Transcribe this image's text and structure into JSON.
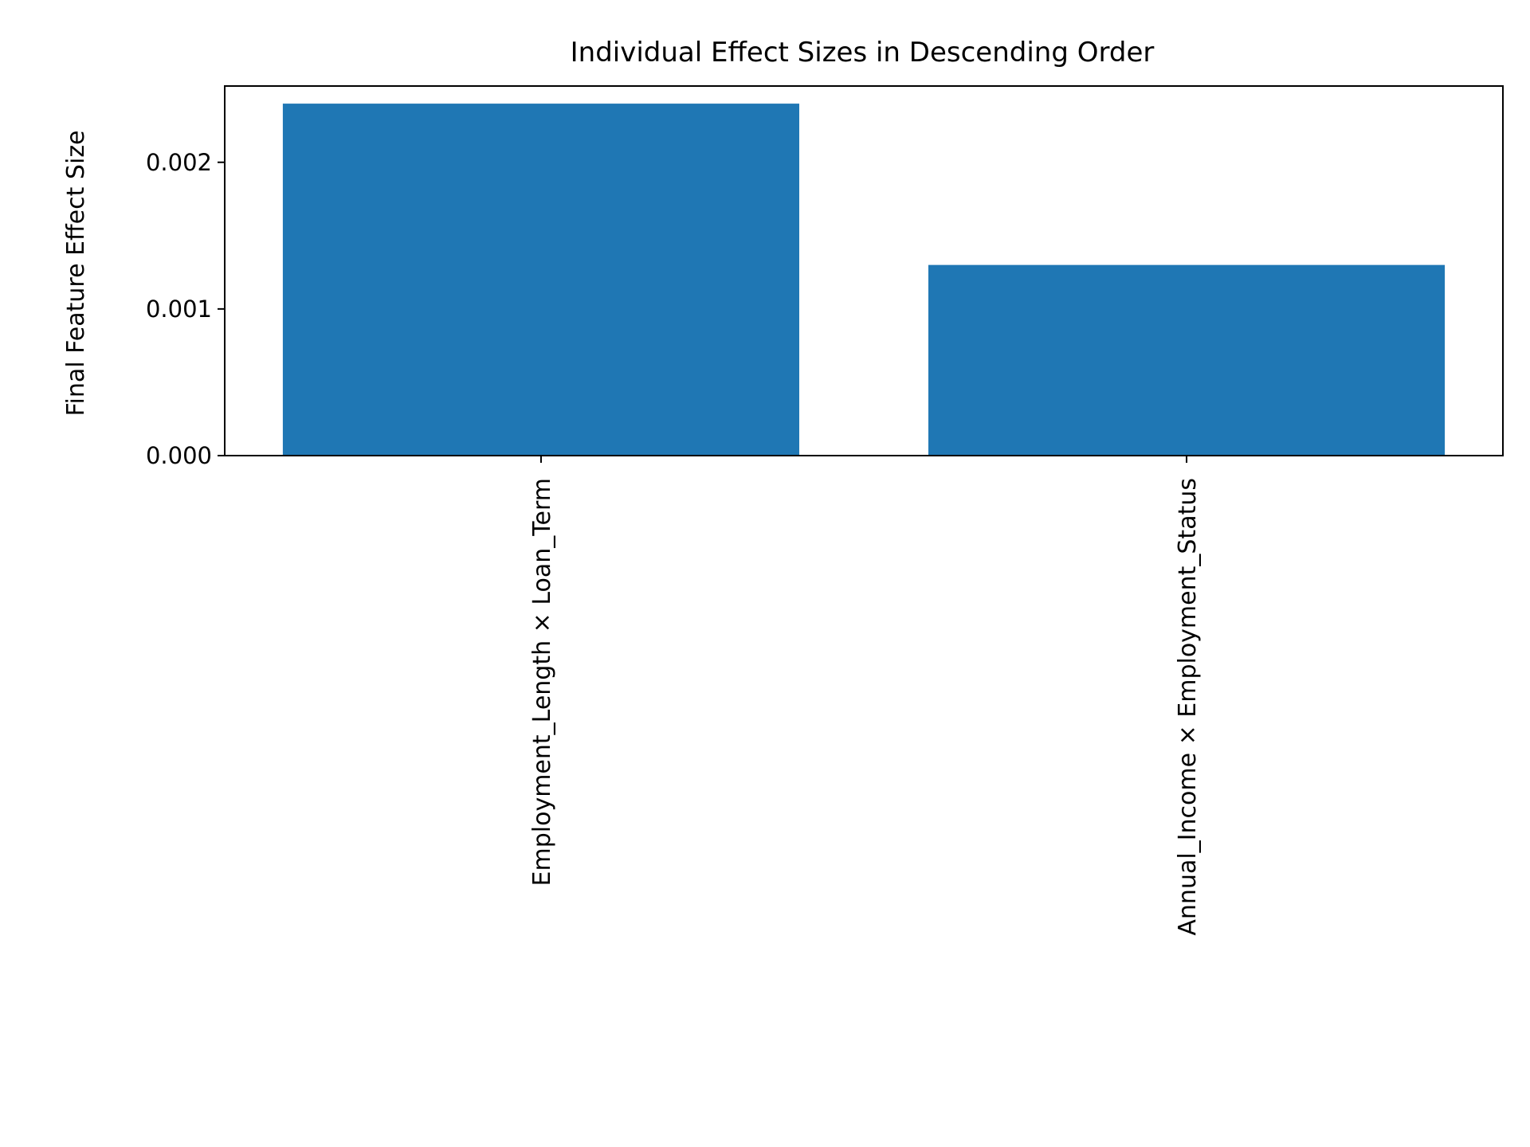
{
  "chart_data": {
    "type": "bar",
    "title": "Individual Effect Sizes in Descending Order",
    "xlabel": "",
    "ylabel": "Final Feature Effect Size",
    "categories": [
      "Employment_Length × Loan_Term",
      "Annual_Income × Employment_Status"
    ],
    "values": [
      0.0024,
      0.0013
    ],
    "ylim": [
      0,
      0.00252
    ],
    "yticks": [
      0,
      0.001,
      0.002
    ],
    "ytick_labels": [
      "0.000",
      "0.001",
      "0.002"
    ],
    "grid": false,
    "legend": "none",
    "bar_color": "#1f77b4"
  }
}
